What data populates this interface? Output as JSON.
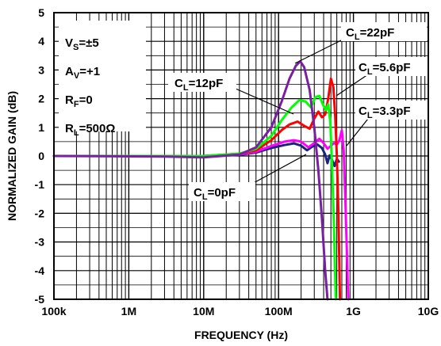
{
  "chart_data": {
    "type": "line",
    "xlabel": "FREQUENCY (Hz)",
    "ylabel": "NORMALIZED GAIN (dB)",
    "x_scale": "log",
    "xlim": [
      100000,
      10000000000
    ],
    "ylim": [
      -5,
      5
    ],
    "grid": true,
    "x_ticks": [
      {
        "value": 100000,
        "label": "100k"
      },
      {
        "value": 1000000,
        "label": "1M"
      },
      {
        "value": 10000000,
        "label": "10M"
      },
      {
        "value": 100000000,
        "label": "100M"
      },
      {
        "value": 1000000000,
        "label": "1G"
      },
      {
        "value": 10000000000,
        "label": "10G"
      }
    ],
    "y_ticks": [
      {
        "value": 5,
        "label": "5"
      },
      {
        "value": 4,
        "label": "4"
      },
      {
        "value": 3,
        "label": "3"
      },
      {
        "value": 2,
        "label": "2"
      },
      {
        "value": 1,
        "label": "1"
      },
      {
        "value": 0,
        "label": "0"
      },
      {
        "value": -1,
        "label": "-1"
      },
      {
        "value": -2,
        "label": "-2"
      },
      {
        "value": -3,
        "label": "-3"
      },
      {
        "value": -4,
        "label": "-4"
      },
      {
        "value": -5,
        "label": "-5"
      }
    ],
    "conditions": [
      {
        "main": "V",
        "sub": "S",
        "rest": "=±5"
      },
      {
        "main": "A",
        "sub": "V",
        "rest": "=+1"
      },
      {
        "main": "R",
        "sub": "F",
        "rest": "=0"
      },
      {
        "main": "R",
        "sub": "L",
        "rest": "=500Ω"
      }
    ],
    "series": [
      {
        "id": "cl0",
        "annotation": {
          "main": "C",
          "sub": "L",
          "rest": "=0pF"
        },
        "color": "#1a237e",
        "points": [
          [
            100000,
            0
          ],
          [
            10000000,
            0
          ],
          [
            30000000,
            0.04
          ],
          [
            50000000,
            0.12
          ],
          [
            80000000,
            0.28
          ],
          [
            120000000,
            0.38
          ],
          [
            160000000,
            0.44
          ],
          [
            200000000,
            0.36
          ],
          [
            240000000,
            0.2
          ],
          [
            280000000,
            0.32
          ],
          [
            330000000,
            0.4
          ],
          [
            380000000,
            0.28
          ],
          [
            420000000,
            0.05
          ],
          [
            450000000,
            -0.25
          ],
          [
            480000000,
            0.02
          ],
          [
            520000000,
            -0.15
          ],
          [
            560000000,
            -0.35
          ],
          [
            600000000,
            -0.1
          ],
          [
            640000000,
            -0.2
          ]
        ]
      },
      {
        "id": "cl3p3",
        "annotation": {
          "main": "C",
          "sub": "L",
          "rest": "=3.3pF"
        },
        "color": "#ff00ff",
        "points": [
          [
            100000,
            0
          ],
          [
            10000000,
            0
          ],
          [
            30000000,
            0.05
          ],
          [
            50000000,
            0.15
          ],
          [
            80000000,
            0.35
          ],
          [
            120000000,
            0.5
          ],
          [
            160000000,
            0.55
          ],
          [
            200000000,
            0.5
          ],
          [
            250000000,
            0.3
          ],
          [
            300000000,
            0.45
          ],
          [
            350000000,
            0.6
          ],
          [
            400000000,
            0.45
          ],
          [
            450000000,
            0.25
          ],
          [
            500000000,
            0.35
          ],
          [
            550000000,
            0.45
          ],
          [
            600000000,
            0.4
          ],
          [
            650000000,
            0.55
          ],
          [
            700000000,
            0.9
          ],
          [
            740000000,
            0.2
          ],
          [
            780000000,
            -1.5
          ],
          [
            820000000,
            -3.5
          ],
          [
            850000000,
            -5
          ]
        ]
      },
      {
        "id": "cl5p6",
        "annotation": {
          "main": "C",
          "sub": "L",
          "rest": "=5.6pF"
        },
        "color": "#ff0000",
        "points": [
          [
            100000,
            0
          ],
          [
            10000000,
            0
          ],
          [
            30000000,
            0.08
          ],
          [
            50000000,
            0.2
          ],
          [
            80000000,
            0.55
          ],
          [
            110000000,
            0.9
          ],
          [
            140000000,
            1.1
          ],
          [
            180000000,
            1.2
          ],
          [
            220000000,
            1.05
          ],
          [
            260000000,
            0.95
          ],
          [
            300000000,
            1.3
          ],
          [
            340000000,
            1.55
          ],
          [
            380000000,
            1.35
          ],
          [
            420000000,
            1.45
          ],
          [
            460000000,
            2
          ],
          [
            500000000,
            2.7
          ],
          [
            540000000,
            2.4
          ],
          [
            570000000,
            1.4
          ],
          [
            600000000,
            0
          ],
          [
            630000000,
            -2
          ],
          [
            660000000,
            -5
          ]
        ]
      },
      {
        "id": "cl12",
        "annotation": {
          "main": "C",
          "sub": "L",
          "rest": "=12pF"
        },
        "color": "#00ff00",
        "points": [
          [
            100000,
            0
          ],
          [
            10000000,
            0
          ],
          [
            30000000,
            0.08
          ],
          [
            50000000,
            0.25
          ],
          [
            80000000,
            0.7
          ],
          [
            110000000,
            1.25
          ],
          [
            150000000,
            1.7
          ],
          [
            190000000,
            1.95
          ],
          [
            230000000,
            1.9
          ],
          [
            270000000,
            1.7
          ],
          [
            310000000,
            2.05
          ],
          [
            350000000,
            2.1
          ],
          [
            390000000,
            1.8
          ],
          [
            430000000,
            1.6
          ],
          [
            460000000,
            1.8
          ],
          [
            490000000,
            1.2
          ],
          [
            520000000,
            -0.5
          ],
          [
            550000000,
            -2.5
          ],
          [
            580000000,
            -5
          ]
        ]
      },
      {
        "id": "cl22",
        "annotation": {
          "main": "C",
          "sub": "L",
          "rest": "=22pF"
        },
        "color": "#7b1fa2",
        "points": [
          [
            100000,
            0
          ],
          [
            3000000,
            -0.02
          ],
          [
            10000000,
            -0.05
          ],
          [
            30000000,
            0.05
          ],
          [
            50000000,
            0.3
          ],
          [
            80000000,
            1
          ],
          [
            110000000,
            1.9
          ],
          [
            140000000,
            2.7
          ],
          [
            170000000,
            3.15
          ],
          [
            195000000,
            3.3
          ],
          [
            220000000,
            3.1
          ],
          [
            260000000,
            2.3
          ],
          [
            300000000,
            1
          ],
          [
            340000000,
            -0.5
          ],
          [
            380000000,
            -2.2
          ],
          [
            420000000,
            -4
          ],
          [
            450000000,
            -5
          ]
        ]
      }
    ]
  }
}
